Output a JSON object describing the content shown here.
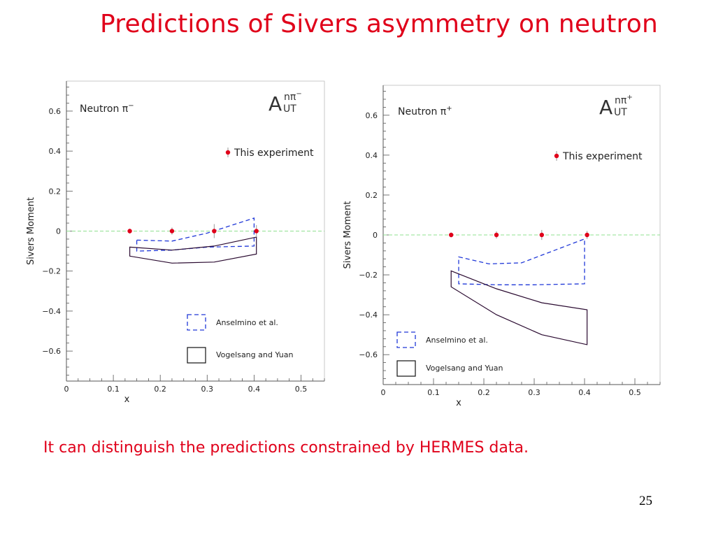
{
  "title": "Predictions of Sivers asymmetry on neutron",
  "caption": "It can distinguish the predictions constrained by HERMES data.",
  "page_number": "25",
  "colors": {
    "title": "#e0001a",
    "points": "#e0001a",
    "anselmino": "#2038d8",
    "vogelsang": "#2a0a30",
    "zero_line": "#90e090",
    "axis": "#555555"
  },
  "panels": [
    {
      "label_text": "Neutron π",
      "label_sup": "−",
      "asym_A": "A",
      "asym_sup": "nπ",
      "asym_charge": "−",
      "asym_sub": "UT"
    },
    {
      "label_text": "Neutron π",
      "label_sup": "+",
      "asym_A": "A",
      "asym_sup": "nπ",
      "asym_charge": "+",
      "asym_sub": "UT"
    }
  ],
  "chart_data": [
    {
      "type": "scatter",
      "xlabel": "x",
      "ylabel": "Sivers Moment",
      "xlim": [
        0,
        0.55
      ],
      "ylim": [
        -0.75,
        0.75
      ],
      "x_ticks": [
        0,
        0.1,
        0.2,
        0.3,
        0.4,
        0.5
      ],
      "x_tick_labels": [
        "0",
        "0.1",
        "0.2",
        "0.3",
        "0.4",
        "0.5"
      ],
      "y_ticks": [
        -0.6,
        -0.4,
        -0.2,
        0,
        0.2,
        0.4,
        0.6
      ],
      "y_tick_labels": [
        "−0.6",
        "−0.4",
        "−0.2",
        "0",
        "0.2",
        "0.4",
        "0.6"
      ],
      "zero_line": true,
      "points": {
        "name": "This experiment",
        "x": [
          0.135,
          0.225,
          0.315,
          0.405
        ],
        "y": [
          0,
          0,
          0,
          0
        ],
        "err": [
          0.012,
          0.018,
          0.035,
          0.03
        ]
      },
      "bands": [
        {
          "name": "Anselmino et al.",
          "style": "dashed",
          "upper": [
            [
              0.15,
              -0.045
            ],
            [
              0.225,
              -0.05
            ],
            [
              0.3,
              -0.01
            ],
            [
              0.4,
              0.065
            ]
          ],
          "lower": [
            [
              0.15,
              -0.1
            ],
            [
              0.225,
              -0.095
            ],
            [
              0.3,
              -0.08
            ],
            [
              0.4,
              -0.075
            ]
          ]
        },
        {
          "name": "Vogelsang and Yuan",
          "style": "solid",
          "upper": [
            [
              0.135,
              -0.08
            ],
            [
              0.225,
              -0.095
            ],
            [
              0.315,
              -0.075
            ],
            [
              0.405,
              -0.03
            ]
          ],
          "lower": [
            [
              0.135,
              -0.125
            ],
            [
              0.225,
              -0.16
            ],
            [
              0.315,
              -0.155
            ],
            [
              0.405,
              -0.115
            ]
          ]
        }
      ],
      "legend": {
        "entries": [
          "This experiment",
          "Anselmino et al.",
          "Vogelsang and Yuan"
        ]
      }
    },
    {
      "type": "scatter",
      "xlabel": "x",
      "ylabel": "Sivers Moment",
      "xlim": [
        0,
        0.55
      ],
      "ylim": [
        -0.75,
        0.75
      ],
      "x_ticks": [
        0,
        0.1,
        0.2,
        0.3,
        0.4,
        0.5
      ],
      "x_tick_labels": [
        "0",
        "0.1",
        "0.2",
        "0.3",
        "0.4",
        "0.5"
      ],
      "y_ticks": [
        -0.6,
        -0.4,
        -0.2,
        0,
        0.2,
        0.4,
        0.6
      ],
      "y_tick_labels": [
        "−0.6",
        "−0.4",
        "−0.2",
        "0",
        "0.2",
        "0.4",
        "0.6"
      ],
      "zero_line": true,
      "points": {
        "name": "This experiment",
        "x": [
          0.135,
          0.225,
          0.315,
          0.405
        ],
        "y": [
          0,
          0,
          0,
          0
        ],
        "err": [
          0.012,
          0.018,
          0.025,
          0.02
        ]
      },
      "bands": [
        {
          "name": "Anselmino et al.",
          "style": "dashed",
          "upper": [
            [
              0.15,
              -0.11
            ],
            [
              0.21,
              -0.145
            ],
            [
              0.275,
              -0.14
            ],
            [
              0.4,
              -0.02
            ]
          ],
          "lower": [
            [
              0.15,
              -0.245
            ],
            [
              0.225,
              -0.25
            ],
            [
              0.3,
              -0.25
            ],
            [
              0.4,
              -0.245
            ]
          ]
        },
        {
          "name": "Vogelsang and Yuan",
          "style": "solid",
          "upper": [
            [
              0.135,
              -0.18
            ],
            [
              0.225,
              -0.27
            ],
            [
              0.315,
              -0.34
            ],
            [
              0.405,
              -0.375
            ]
          ],
          "lower": [
            [
              0.135,
              -0.26
            ],
            [
              0.225,
              -0.4
            ],
            [
              0.315,
              -0.5
            ],
            [
              0.405,
              -0.55
            ]
          ]
        }
      ],
      "legend": {
        "entries": [
          "This experiment",
          "Anselmino et al.",
          "Vogelsang and Yuan"
        ]
      }
    }
  ]
}
